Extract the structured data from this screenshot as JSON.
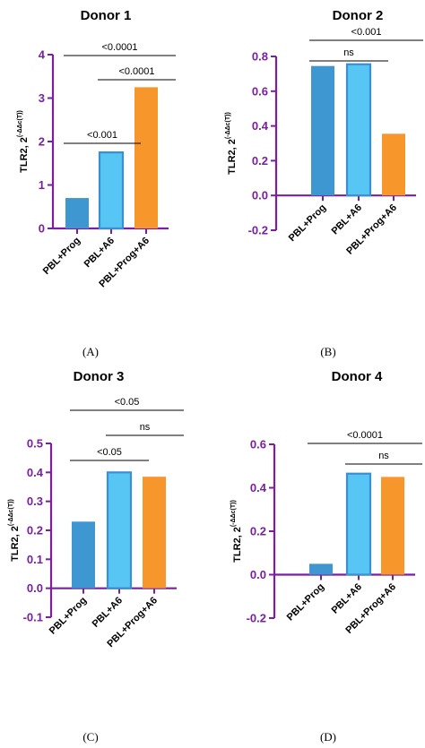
{
  "axis_color": "#7a1fa2",
  "y_label": "TLR2, 2",
  "y_label_sup": "(-ΔΔc(T))",
  "colors": [
    "#3f97d1",
    "#57c6f5",
    "#f7962a"
  ],
  "chart_data": [
    {
      "type": "bar",
      "title": "Donor 1",
      "panel_label": "(A)",
      "categories": [
        "PBL+Prog",
        "PBL+A6",
        "PBL+Prog+A6"
      ],
      "values": [
        0.7,
        1.75,
        3.25
      ],
      "ylim": [
        0,
        4
      ],
      "yticks": [
        0,
        1,
        2,
        3,
        4
      ],
      "ytick_labels": [
        "0",
        "1",
        "2",
        "3",
        "4"
      ],
      "xlabel": "",
      "grid": false,
      "significance": [
        {
          "from": 0,
          "to": 1,
          "label": "<0.001"
        },
        {
          "from": 1,
          "to": 2,
          "label": "<0.0001"
        },
        {
          "from": 0,
          "to": 2,
          "label": "<0.0001"
        }
      ]
    },
    {
      "type": "bar",
      "title": "Donor 2",
      "panel_label": "(B)",
      "categories": [
        "PBL+Prog",
        "PBL+A6",
        "PBL+Prog+A6"
      ],
      "values": [
        0.745,
        0.755,
        0.355
      ],
      "ylim": [
        -0.2,
        0.8
      ],
      "yticks": [
        -0.2,
        0.0,
        0.2,
        0.4,
        0.6,
        0.8
      ],
      "ytick_labels": [
        "-0.2",
        "0.0",
        "0.2",
        "0.4",
        "0.6",
        "0.8"
      ],
      "xlabel": "",
      "grid": false,
      "significance": [
        {
          "from": 0,
          "to": 1,
          "label": "ns"
        },
        {
          "from": 0,
          "to": 2,
          "label": "<0.001"
        }
      ]
    },
    {
      "type": "bar",
      "title": "Donor 3",
      "panel_label": "(C)",
      "categories": [
        "PBL+Prog",
        "PBL+A6",
        "PBL+Prog+A6"
      ],
      "values": [
        0.23,
        0.4,
        0.385
      ],
      "ylim": [
        -0.1,
        0.5
      ],
      "yticks": [
        -0.1,
        0.0,
        0.1,
        0.2,
        0.3,
        0.4,
        0.5
      ],
      "ytick_labels": [
        "-0.1",
        "0.0",
        "0.1",
        "0.2",
        "0.3",
        "0.4",
        "0.5"
      ],
      "xlabel": "",
      "grid": false,
      "significance": [
        {
          "from": 0,
          "to": 1,
          "label": "<0.05"
        },
        {
          "from": 1,
          "to": 2,
          "label": "ns"
        },
        {
          "from": 0,
          "to": 2,
          "label": "<0.05"
        }
      ]
    },
    {
      "type": "bar",
      "title": "Donor 4",
      "panel_label": "(D)",
      "categories": [
        "PBL+Prog",
        "PBL+A6",
        "PBL+Prog+A6"
      ],
      "values": [
        0.05,
        0.465,
        0.45
      ],
      "ylim": [
        -0.2,
        0.6
      ],
      "yticks": [
        -0.2,
        0.0,
        0.2,
        0.4,
        0.6
      ],
      "ytick_labels": [
        "-0.2",
        "0.0",
        "0.2",
        "0.4",
        "0.6"
      ],
      "xlabel": "",
      "grid": false,
      "significance": [
        {
          "from": 1,
          "to": 2,
          "label": "ns"
        },
        {
          "from": 0,
          "to": 2,
          "label": "<0.0001"
        }
      ]
    }
  ]
}
